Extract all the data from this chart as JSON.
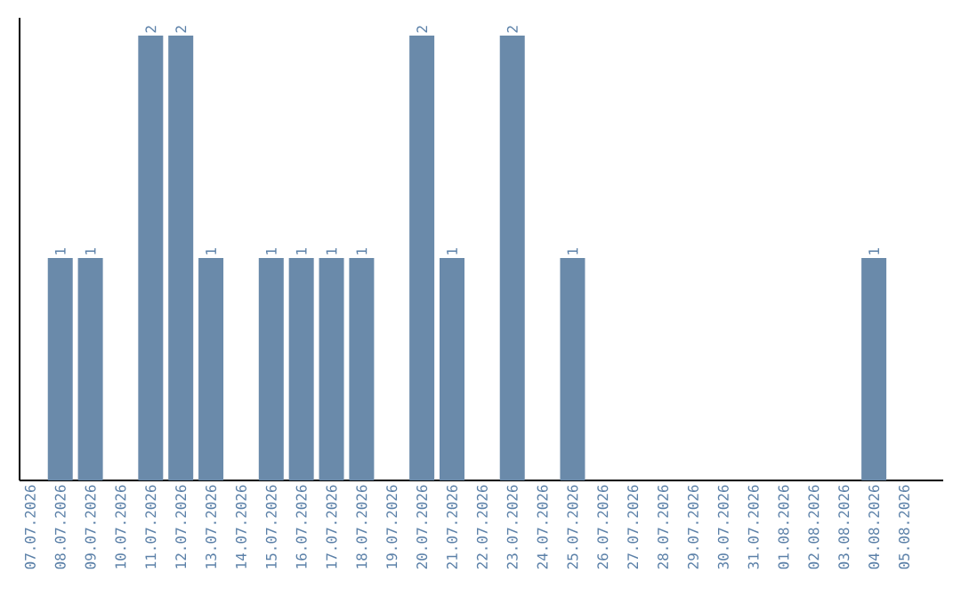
{
  "chart_data": {
    "type": "bar",
    "categories": [
      "07.07.2026",
      "08.07.2026",
      "09.07.2026",
      "10.07.2026",
      "11.07.2026",
      "12.07.2026",
      "13.07.2026",
      "14.07.2026",
      "15.07.2026",
      "16.07.2026",
      "17.07.2026",
      "18.07.2026",
      "19.07.2026",
      "20.07.2026",
      "21.07.2026",
      "22.07.2026",
      "23.07.2026",
      "24.07.2026",
      "25.07.2026",
      "26.07.2026",
      "27.07.2026",
      "28.07.2026",
      "29.07.2026",
      "30.07.2026",
      "31.07.2026",
      "01.08.2026",
      "02.08.2026",
      "03.08.2026",
      "04.08.2026",
      "05.08.2026"
    ],
    "values": [
      0,
      1,
      1,
      0,
      2,
      2,
      1,
      0,
      1,
      1,
      1,
      1,
      0,
      2,
      1,
      0,
      2,
      0,
      1,
      0,
      0,
      0,
      0,
      0,
      0,
      0,
      0,
      0,
      1,
      0
    ],
    "value_labels": [
      null,
      "1",
      "1",
      null,
      "2",
      "2",
      "1",
      null,
      "1",
      "1",
      "1",
      "1",
      null,
      "2",
      "1",
      null,
      "2",
      null,
      "1",
      null,
      null,
      null,
      null,
      null,
      null,
      null,
      null,
      null,
      "1",
      null
    ],
    "color": "#6a8aaa",
    "ylim": [
      0,
      2.08
    ],
    "grid": false
  }
}
